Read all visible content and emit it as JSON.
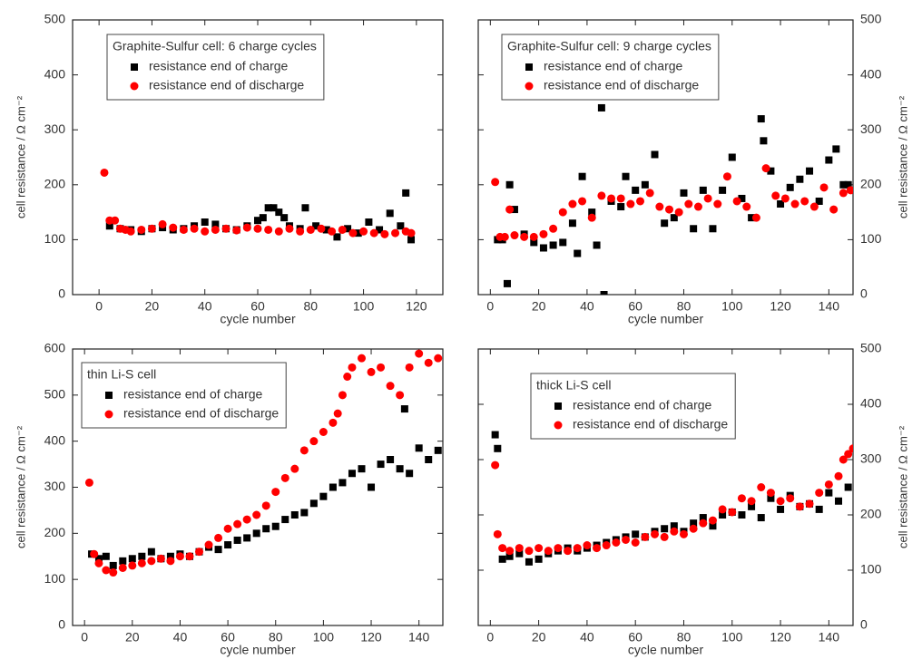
{
  "chart_data": [
    {
      "type": "scatter",
      "title": "Graphite-Sulfur cell: 6 charge cycles",
      "xlabel": "cycle number",
      "ylabel": "cell resistance / Ω cm⁻²",
      "yaxis_side": "left",
      "legend": "upper left",
      "xlim": [
        -10,
        130
      ],
      "xticks": [
        0,
        20,
        40,
        60,
        80,
        100,
        120
      ],
      "ylim": [
        0,
        500
      ],
      "yticks": [
        0,
        100,
        200,
        300,
        400,
        500
      ],
      "series": [
        {
          "name": "resistance end of charge",
          "color": "#000000",
          "marker": "square",
          "x": [
            4,
            8,
            12,
            16,
            20,
            24,
            28,
            32,
            36,
            40,
            44,
            48,
            52,
            56,
            60,
            62,
            64,
            66,
            68,
            70,
            72,
            76,
            78,
            82,
            86,
            90,
            94,
            98,
            102,
            106,
            110,
            114,
            116,
            118
          ],
          "values": [
            125,
            120,
            118,
            115,
            120,
            122,
            118,
            120,
            125,
            132,
            128,
            120,
            118,
            125,
            135,
            140,
            158,
            158,
            150,
            140,
            125,
            120,
            158,
            125,
            118,
            105,
            120,
            112,
            132,
            118,
            148,
            125,
            185,
            100
          ]
        },
        {
          "name": "resistance end of discharge",
          "color": "#ff0000",
          "marker": "circle",
          "x": [
            2,
            4,
            6,
            8,
            10,
            12,
            16,
            20,
            24,
            28,
            32,
            36,
            40,
            44,
            48,
            52,
            56,
            60,
            64,
            68,
            72,
            76,
            80,
            84,
            88,
            92,
            96,
            100,
            104,
            108,
            112,
            116,
            118
          ],
          "values": [
            222,
            135,
            135,
            120,
            118,
            115,
            118,
            120,
            128,
            122,
            118,
            120,
            115,
            118,
            120,
            117,
            122,
            120,
            118,
            115,
            120,
            115,
            118,
            120,
            115,
            118,
            112,
            115,
            112,
            110,
            112,
            115,
            112
          ]
        }
      ]
    },
    {
      "type": "scatter",
      "title": "Graphite-Sulfur cell: 9 charge cycles",
      "xlabel": "cycle number",
      "ylabel": "cell resistance / Ω cm⁻²",
      "yaxis_side": "right",
      "legend": "upper left",
      "xlim": [
        -5,
        150
      ],
      "xticks": [
        0,
        20,
        40,
        60,
        80,
        100,
        120,
        140
      ],
      "ylim": [
        0,
        500
      ],
      "yticks": [
        0,
        100,
        200,
        300,
        400,
        500
      ],
      "series": [
        {
          "name": "resistance end of charge",
          "color": "#000000",
          "marker": "square",
          "x": [
            3,
            5,
            7,
            8,
            10,
            14,
            18,
            22,
            26,
            30,
            34,
            36,
            38,
            42,
            44,
            46,
            47,
            50,
            54,
            56,
            60,
            64,
            68,
            72,
            76,
            80,
            84,
            88,
            92,
            96,
            100,
            104,
            108,
            112,
            113,
            116,
            120,
            124,
            128,
            132,
            136,
            140,
            143,
            146,
            148
          ],
          "values": [
            100,
            100,
            20,
            200,
            155,
            110,
            95,
            85,
            90,
            95,
            130,
            75,
            215,
            150,
            90,
            340,
            0,
            170,
            160,
            215,
            190,
            200,
            255,
            130,
            140,
            185,
            120,
            190,
            120,
            190,
            250,
            175,
            140,
            320,
            280,
            225,
            165,
            195,
            210,
            225,
            170,
            245,
            265,
            200,
            200
          ]
        },
        {
          "name": "resistance end of discharge",
          "color": "#ff0000",
          "marker": "circle",
          "x": [
            2,
            4,
            6,
            8,
            10,
            14,
            18,
            22,
            26,
            30,
            34,
            38,
            42,
            46,
            50,
            54,
            58,
            62,
            66,
            70,
            74,
            78,
            82,
            86,
            90,
            94,
            98,
            102,
            106,
            110,
            114,
            118,
            122,
            126,
            130,
            134,
            138,
            142,
            146,
            149
          ],
          "values": [
            205,
            105,
            105,
            155,
            108,
            105,
            105,
            110,
            120,
            150,
            165,
            170,
            140,
            180,
            175,
            175,
            165,
            170,
            185,
            160,
            155,
            150,
            165,
            160,
            175,
            165,
            215,
            170,
            160,
            140,
            230,
            180,
            175,
            165,
            170,
            160,
            195,
            155,
            185,
            190
          ]
        }
      ]
    },
    {
      "type": "scatter",
      "title": "thin Li-S cell",
      "xlabel": "cycle number",
      "ylabel": "cell resistance / Ω cm⁻²",
      "yaxis_side": "left",
      "legend": "upper left",
      "xlim": [
        -5,
        150
      ],
      "xticks": [
        0,
        20,
        40,
        60,
        80,
        100,
        120,
        140
      ],
      "ylim": [
        0,
        600
      ],
      "yticks": [
        0,
        100,
        200,
        300,
        400,
        500,
        600
      ],
      "series": [
        {
          "name": "resistance end of charge",
          "color": "#000000",
          "marker": "square",
          "x": [
            3,
            6,
            9,
            12,
            16,
            20,
            24,
            28,
            32,
            36,
            40,
            44,
            48,
            52,
            56,
            60,
            64,
            68,
            72,
            76,
            80,
            84,
            88,
            92,
            96,
            100,
            104,
            108,
            112,
            116,
            120,
            124,
            128,
            132,
            134,
            136,
            140,
            144,
            148
          ],
          "values": [
            155,
            145,
            150,
            130,
            140,
            145,
            150,
            160,
            145,
            150,
            155,
            150,
            160,
            170,
            165,
            175,
            185,
            190,
            200,
            210,
            215,
            230,
            240,
            245,
            265,
            280,
            300,
            310,
            330,
            340,
            300,
            350,
            360,
            340,
            470,
            330,
            385,
            360,
            380
          ]
        },
        {
          "name": "resistance end of discharge",
          "color": "#ff0000",
          "marker": "circle",
          "x": [
            2,
            4,
            6,
            9,
            12,
            16,
            20,
            24,
            28,
            32,
            36,
            40,
            44,
            48,
            52,
            56,
            60,
            64,
            68,
            72,
            76,
            80,
            84,
            88,
            92,
            96,
            100,
            104,
            106,
            108,
            110,
            112,
            116,
            120,
            124,
            128,
            132,
            136,
            140,
            144,
            148
          ],
          "values": [
            310,
            155,
            135,
            120,
            115,
            125,
            130,
            135,
            140,
            145,
            140,
            150,
            150,
            160,
            175,
            190,
            210,
            220,
            230,
            240,
            260,
            290,
            320,
            340,
            380,
            400,
            420,
            440,
            460,
            500,
            540,
            560,
            580,
            550,
            560,
            520,
            500,
            560,
            590,
            570,
            580
          ]
        }
      ]
    },
    {
      "type": "scatter",
      "title": "thick Li-S cell",
      "xlabel": "cycle number",
      "ylabel": "cell resistance / Ω cm⁻²",
      "yaxis_side": "right",
      "legend": "upper left",
      "xlim": [
        -5,
        150
      ],
      "xticks": [
        0,
        20,
        40,
        60,
        80,
        100,
        120,
        140
      ],
      "ylim": [
        0,
        500
      ],
      "yticks": [
        0,
        100,
        200,
        300,
        400,
        500
      ],
      "series": [
        {
          "name": "resistance end of charge",
          "color": "#000000",
          "marker": "square",
          "x": [
            2,
            3,
            5,
            8,
            12,
            16,
            20,
            24,
            28,
            32,
            36,
            40,
            44,
            48,
            52,
            56,
            60,
            64,
            68,
            72,
            76,
            80,
            84,
            88,
            92,
            96,
            100,
            104,
            108,
            112,
            116,
            120,
            124,
            128,
            132,
            136,
            140,
            144,
            148
          ],
          "values": [
            345,
            320,
            120,
            125,
            130,
            115,
            120,
            130,
            135,
            140,
            135,
            140,
            145,
            150,
            155,
            160,
            165,
            160,
            170,
            175,
            180,
            170,
            185,
            195,
            180,
            200,
            205,
            200,
            215,
            195,
            230,
            210,
            235,
            215,
            220,
            210,
            240,
            225,
            250
          ]
        },
        {
          "name": "resistance end of discharge",
          "color": "#ff0000",
          "marker": "circle",
          "x": [
            2,
            3,
            5,
            8,
            12,
            16,
            20,
            24,
            28,
            32,
            36,
            40,
            44,
            48,
            52,
            56,
            60,
            64,
            68,
            72,
            76,
            80,
            84,
            88,
            92,
            96,
            100,
            104,
            108,
            112,
            116,
            120,
            124,
            128,
            132,
            136,
            140,
            144,
            146,
            148,
            150
          ],
          "values": [
            290,
            165,
            140,
            135,
            140,
            135,
            140,
            135,
            140,
            135,
            140,
            145,
            140,
            145,
            150,
            155,
            150,
            160,
            165,
            160,
            170,
            165,
            175,
            185,
            190,
            210,
            205,
            230,
            225,
            250,
            240,
            225,
            230,
            215,
            220,
            240,
            255,
            270,
            300,
            310,
            320
          ]
        }
      ]
    }
  ]
}
